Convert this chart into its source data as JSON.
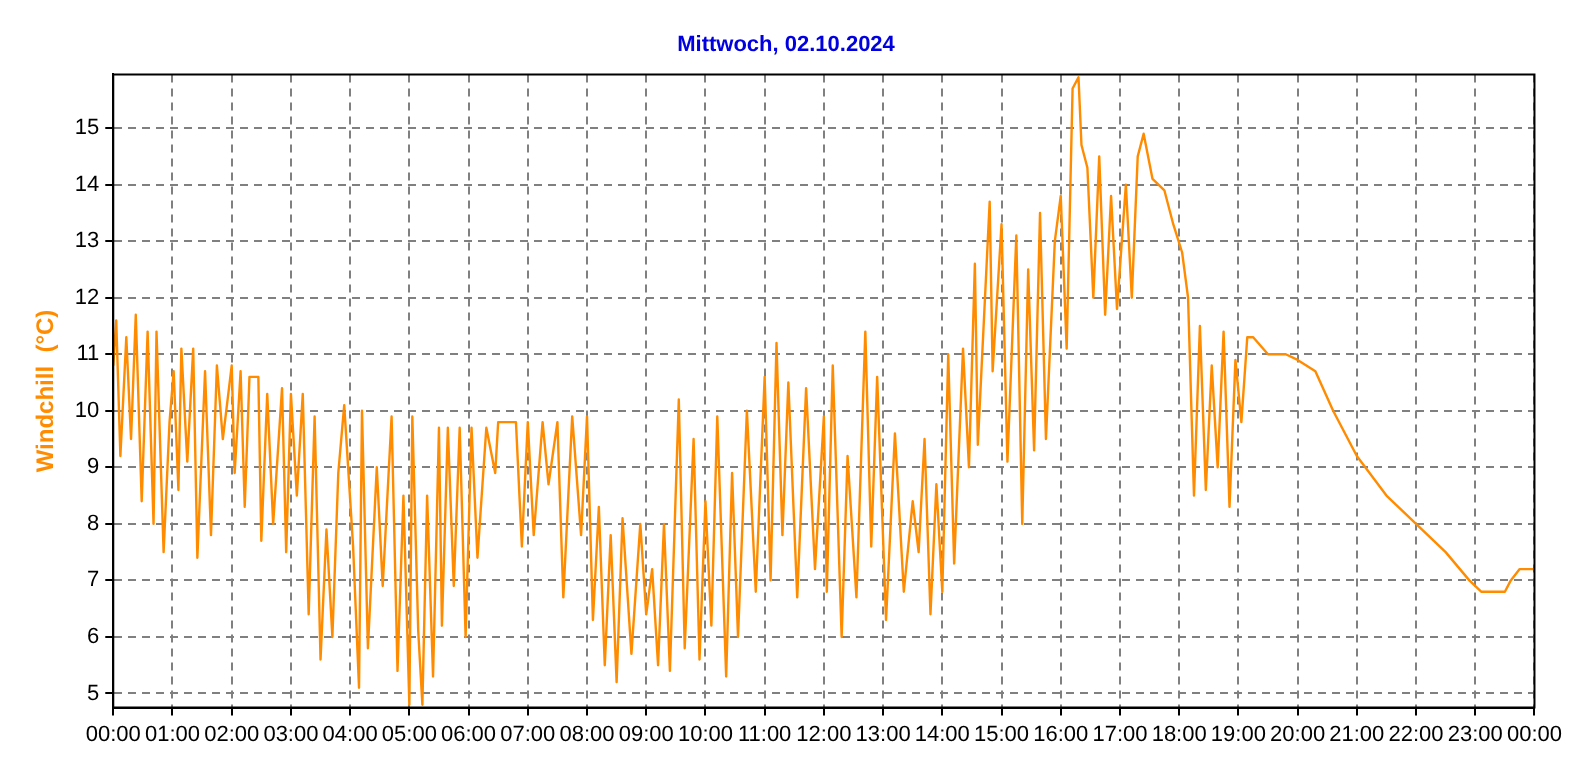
{
  "chart_data": {
    "type": "line",
    "title": "Mittwoch, 02.10.2024",
    "ylabel": "Windchill  (°C)",
    "xlim": [
      0,
      24
    ],
    "xticks": [
      {
        "value": 0,
        "label": "00:00"
      },
      {
        "value": 1,
        "label": "01:00"
      },
      {
        "value": 2,
        "label": "02:00"
      },
      {
        "value": 3,
        "label": "03:00"
      },
      {
        "value": 4,
        "label": "04:00"
      },
      {
        "value": 5,
        "label": "05:00"
      },
      {
        "value": 6,
        "label": "06:00"
      },
      {
        "value": 7,
        "label": "07:00"
      },
      {
        "value": 8,
        "label": "08:00"
      },
      {
        "value": 9,
        "label": "09:00"
      },
      {
        "value": 10,
        "label": "10:00"
      },
      {
        "value": 11,
        "label": "11:00"
      },
      {
        "value": 12,
        "label": "12:00"
      },
      {
        "value": 13,
        "label": "13:00"
      },
      {
        "value": 14,
        "label": "14:00"
      },
      {
        "value": 15,
        "label": "15:00"
      },
      {
        "value": 16,
        "label": "16:00"
      },
      {
        "value": 17,
        "label": "17:00"
      },
      {
        "value": 18,
        "label": "18:00"
      },
      {
        "value": 19,
        "label": "19:00"
      },
      {
        "value": 20,
        "label": "20:00"
      },
      {
        "value": 21,
        "label": "21:00"
      },
      {
        "value": 22,
        "label": "22:00"
      },
      {
        "value": 23,
        "label": "23:00"
      },
      {
        "value": 24,
        "label": "00:00"
      }
    ],
    "ylim": [
      4.75,
      15.95
    ],
    "yticks": [
      5,
      6,
      7,
      8,
      9,
      10,
      11,
      12,
      13,
      14,
      15
    ],
    "grid": true,
    "legend": false,
    "marker": "none",
    "line_style": "solid",
    "series": [
      {
        "color": "#ff8c00",
        "x": [
          0,
          0.05,
          0.12,
          0.22,
          0.3,
          0.38,
          0.48,
          0.58,
          0.68,
          0.73,
          0.85,
          0.95,
          1.02,
          1.1,
          1.15,
          1.25,
          1.35,
          1.42,
          1.55,
          1.65,
          1.75,
          1.85,
          2,
          2.05,
          2.15,
          2.22,
          2.3,
          2.45,
          2.5,
          2.6,
          2.7,
          2.85,
          2.92,
          3,
          3.1,
          3.2,
          3.3,
          3.4,
          3.5,
          3.6,
          3.7,
          3.8,
          3.9,
          4.05,
          4.15,
          4.2,
          4.3,
          4.45,
          4.55,
          4.7,
          4.8,
          4.9,
          5,
          5.05,
          5.15,
          5.22,
          5.3,
          5.4,
          5.5,
          5.55,
          5.65,
          5.75,
          5.85,
          5.95,
          6.05,
          6.15,
          6.3,
          6.45,
          6.5,
          6.8,
          6.9,
          7,
          7.1,
          7.25,
          7.35,
          7.5,
          7.6,
          7.75,
          7.9,
          8,
          8.1,
          8.2,
          8.3,
          8.4,
          8.5,
          8.6,
          8.75,
          8.9,
          9,
          9.1,
          9.2,
          9.3,
          9.4,
          9.55,
          9.65,
          9.8,
          9.9,
          10,
          10.1,
          10.2,
          10.35,
          10.45,
          10.55,
          10.7,
          10.85,
          11,
          11.1,
          11.2,
          11.3,
          11.4,
          11.55,
          11.7,
          11.85,
          12,
          12.05,
          12.15,
          12.3,
          12.4,
          12.55,
          12.7,
          12.8,
          12.9,
          13.05,
          13.2,
          13.35,
          13.5,
          13.6,
          13.7,
          13.8,
          13.9,
          14,
          14.1,
          14.2,
          14.35,
          14.45,
          14.55,
          14.6,
          14.8,
          14.85,
          15,
          15.1,
          15.25,
          15.35,
          15.45,
          15.55,
          15.65,
          15.75,
          15.9,
          16,
          16.1,
          16.2,
          16.3,
          16.35,
          16.45,
          16.55,
          16.65,
          16.75,
          16.85,
          16.95,
          17.1,
          17.2,
          17.3,
          17.4,
          17.55,
          17.75,
          17.9,
          18.05,
          18.15,
          18.25,
          18.35,
          18.45,
          18.55,
          18.65,
          18.75,
          18.85,
          18.95,
          19.05,
          19.15,
          19.25,
          19.5,
          19.8,
          20,
          20.3,
          20.6,
          21,
          21.5,
          22,
          22.5,
          22.9,
          23.1,
          23.5,
          23.6,
          23.75,
          24
        ],
        "values": [
          10.8,
          11.6,
          9.2,
          11.3,
          9.5,
          11.7,
          8.4,
          11.4,
          8,
          11.4,
          7.5,
          9.8,
          10.7,
          8.6,
          11.1,
          9.1,
          11.1,
          7.4,
          10.7,
          7.8,
          10.8,
          9.5,
          10.8,
          8.9,
          10.7,
          8.3,
          10.6,
          10.6,
          7.7,
          10.3,
          8,
          10.4,
          7.5,
          10.3,
          8.5,
          10.3,
          6.4,
          9.9,
          5.6,
          7.9,
          6,
          8.9,
          10.1,
          7.6,
          5.1,
          10,
          5.8,
          9,
          6.9,
          9.9,
          5.4,
          8.5,
          4.8,
          9.9,
          6.1,
          4.8,
          8.5,
          5.3,
          9.7,
          6.2,
          9.7,
          6.9,
          9.7,
          6,
          9.7,
          7.4,
          9.7,
          8.9,
          9.8,
          9.8,
          7.6,
          9.8,
          7.8,
          9.8,
          8.7,
          9.8,
          6.7,
          9.9,
          7.8,
          9.9,
          6.3,
          8.3,
          5.5,
          7.8,
          5.2,
          8.1,
          5.7,
          8,
          6.4,
          7.2,
          5.5,
          8,
          5.4,
          10.2,
          5.8,
          9.5,
          5.6,
          8.4,
          6.2,
          9.9,
          5.3,
          8.9,
          6,
          10,
          6.8,
          10.6,
          7,
          11.2,
          7.8,
          10.5,
          6.7,
          10.4,
          7.2,
          9.9,
          6.8,
          10.8,
          6,
          9.2,
          6.7,
          11.4,
          7.6,
          10.6,
          6.3,
          9.6,
          6.8,
          8.4,
          7.5,
          9.5,
          6.4,
          8.7,
          6.8,
          11,
          7.3,
          11.1,
          9,
          12.6,
          9.4,
          13.7,
          10.7,
          13.3,
          9.1,
          13.1,
          8,
          12.5,
          9.3,
          13.5,
          9.5,
          13,
          13.8,
          11.1,
          15.7,
          15.9,
          14.7,
          14.3,
          12,
          14.5,
          11.7,
          13.8,
          11.8,
          14,
          12,
          14.5,
          14.9,
          14.1,
          13.9,
          13.3,
          12.8,
          12,
          8.5,
          11.5,
          8.6,
          10.8,
          9,
          11.4,
          8.3,
          10.9,
          9.8,
          11.3,
          11.3,
          11,
          11,
          10.9,
          10.7,
          10,
          9.2,
          8.5,
          8,
          7.5,
          7,
          6.8,
          6.8,
          7,
          7.2,
          7.2
        ]
      }
    ]
  }
}
